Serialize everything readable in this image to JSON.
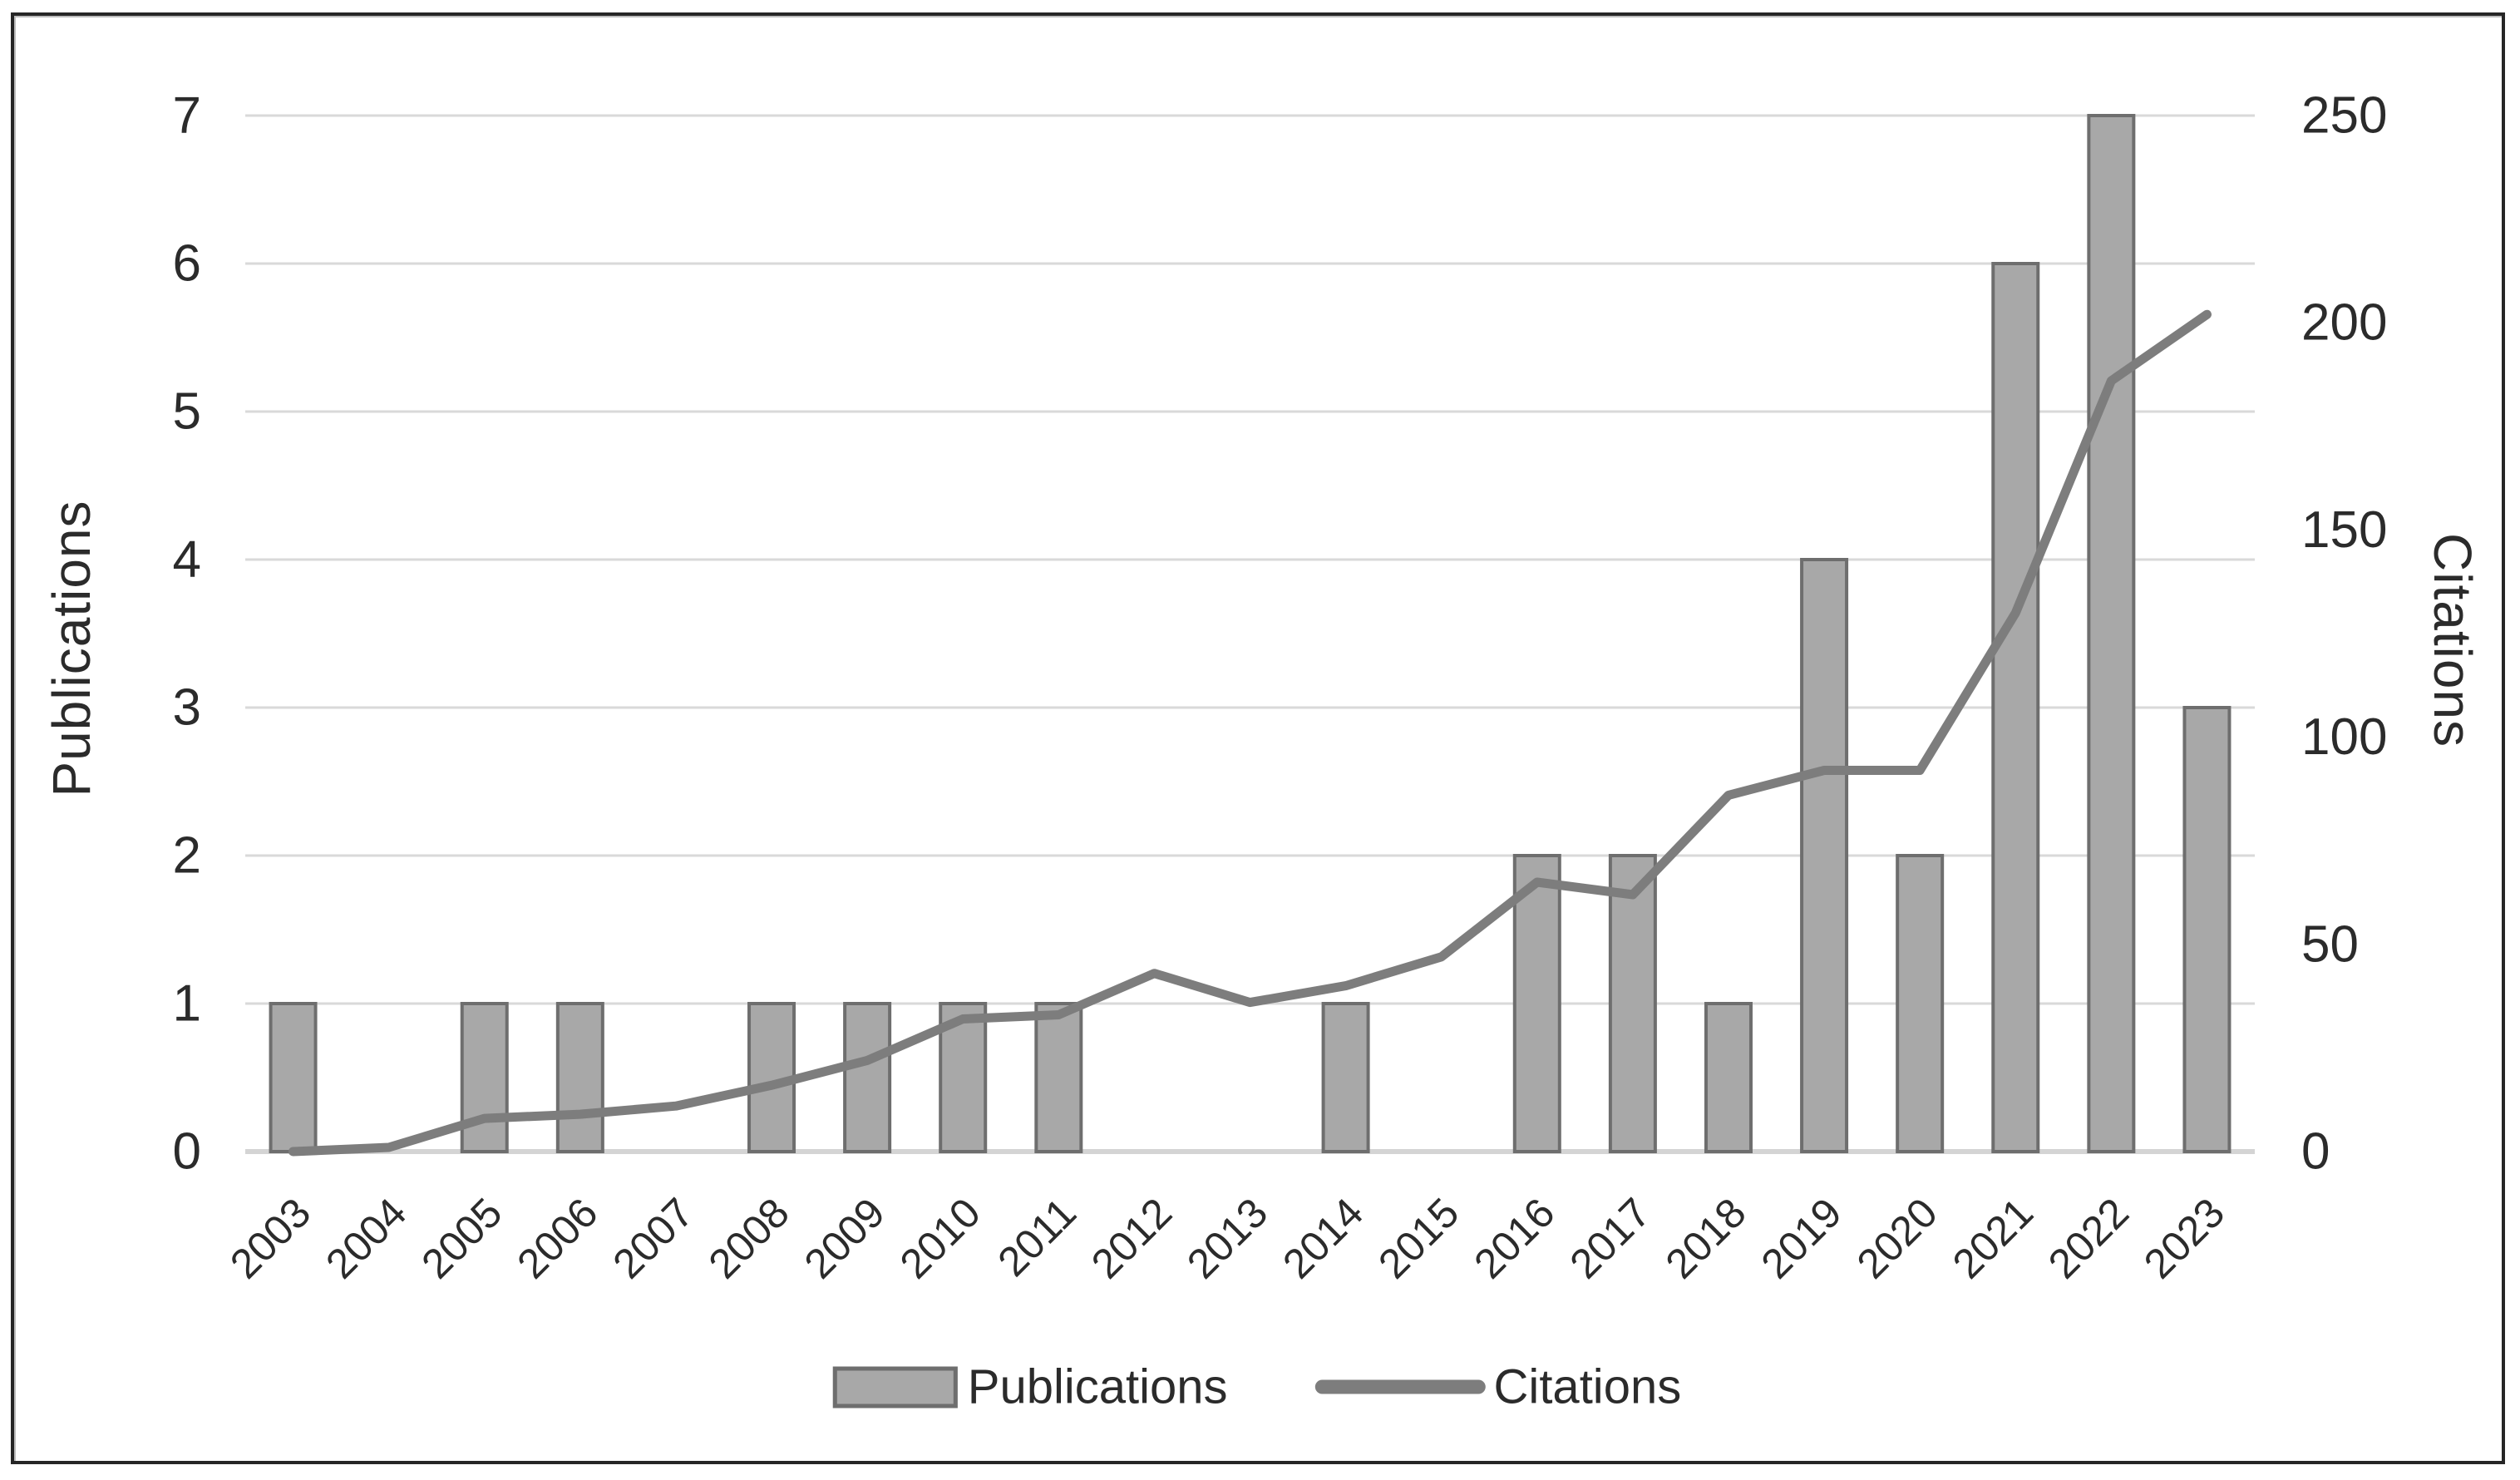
{
  "chart_data": {
    "type": "bar+line combo",
    "categories": [
      "2003",
      "2004",
      "2005",
      "2006",
      "2007",
      "2008",
      "2009",
      "2010",
      "2011",
      "2012",
      "2013",
      "2014",
      "2015",
      "2016",
      "2017",
      "2018",
      "2019",
      "2020",
      "2021",
      "2022",
      "2023"
    ],
    "series": [
      {
        "name": "Publications",
        "type": "bar",
        "axis": "left",
        "values": [
          1,
          0,
          1,
          1,
          0,
          1,
          1,
          1,
          1,
          0,
          0,
          1,
          0,
          2,
          2,
          1,
          4,
          2,
          6,
          7,
          3
        ]
      },
      {
        "name": "Citations",
        "type": "line",
        "axis": "right",
        "values": [
          0,
          1,
          8,
          9,
          11,
          16,
          22,
          32,
          33,
          43,
          36,
          40,
          47,
          65,
          62,
          86,
          92,
          92,
          130,
          186,
          202
        ]
      }
    ],
    "left_axis": {
      "label": "Publications",
      "min": 0,
      "max": 7,
      "ticks": [
        0,
        1,
        2,
        3,
        4,
        5,
        6,
        7
      ]
    },
    "right_axis": {
      "label": "Citations",
      "min": 0,
      "max": 250,
      "ticks": [
        0,
        50,
        100,
        150,
        200,
        250
      ]
    },
    "legend": {
      "publications_label": "Publications",
      "citations_label": "Citations",
      "position": "bottom-center"
    },
    "grid": true
  },
  "colors": {
    "bar_fill": "#a8a8a8",
    "bar_border": "#6e6e6e",
    "line": "#7d7d7d",
    "gridline": "#d9d9d9",
    "baseline": "#d4d4d4",
    "text": "#2b2b2b",
    "frame_border": "#262626",
    "background": "#ffffff"
  }
}
